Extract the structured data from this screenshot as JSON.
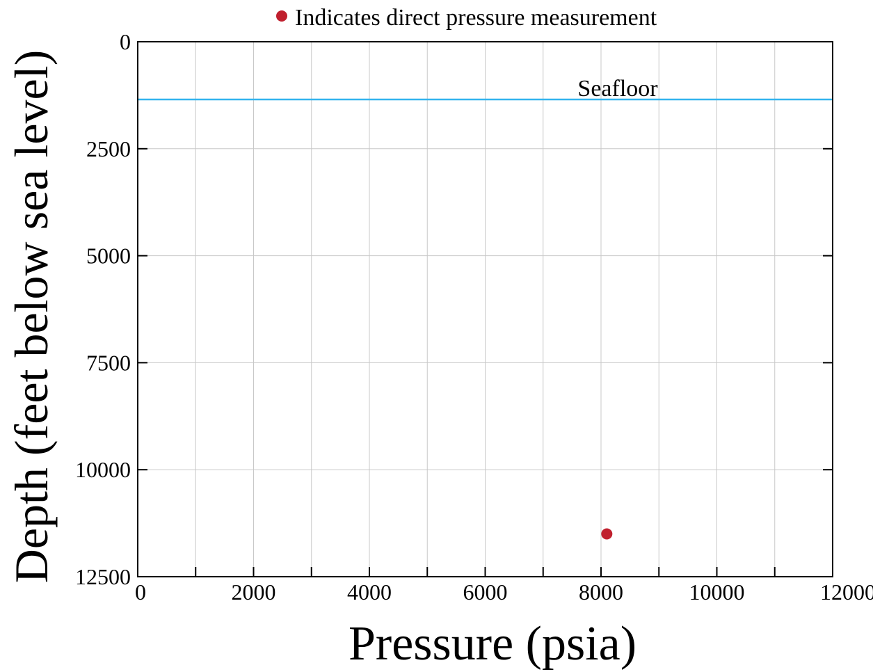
{
  "chart_data": {
    "type": "scatter",
    "xlabel": "Pressure (psia)",
    "ylabel": "Depth (feet below sea level)",
    "xlim": [
      0,
      12000
    ],
    "ylim": [
      0,
      12500
    ],
    "y_inverted": true,
    "x_ticks": [
      "0",
      "2000",
      "4000",
      "6000",
      "8000",
      "10000",
      "12000"
    ],
    "y_ticks": [
      "0",
      "2500",
      "5000",
      "7500",
      "10000",
      "12500"
    ],
    "grid": true,
    "legend": {
      "placement": "top-center",
      "label": "Indicates direct pressure measurement"
    },
    "series": [
      {
        "name": "Indicates direct pressure measurement",
        "color": "#c0202e",
        "points": [
          {
            "x": 8100,
            "y": 11500
          }
        ]
      }
    ],
    "reference_lines": [
      {
        "label": "Seafloor",
        "y": 1350,
        "color": "#33b4ee"
      }
    ]
  }
}
